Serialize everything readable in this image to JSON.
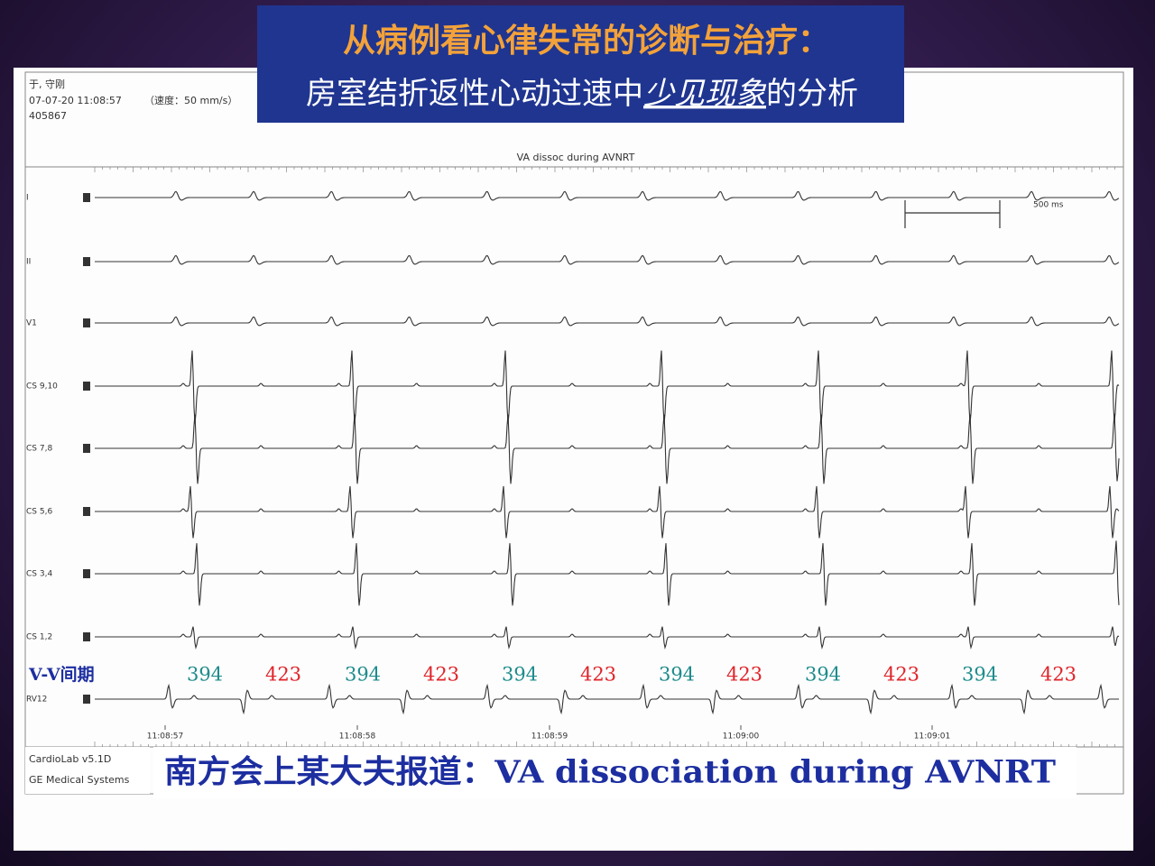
{
  "slide": {
    "title": "从病例看心律失常的诊断与治疗：",
    "subtitle": {
      "before": "房室结折返性心动过速中",
      "emphasis": "少见现象",
      "after": "的分析"
    }
  },
  "record": {
    "patient": "于, 守刚",
    "datetime": "07-07-20 11:08:57",
    "speed": "（速度：50 mm/s）",
    "id": "405867",
    "strip_title": "VA dissoc during AVNRT",
    "scale_label": "500 ms"
  },
  "leads": [
    "I",
    "II",
    "V1",
    "CS 9,10",
    "CS 7,8",
    "CS 5,6",
    "CS 3,4",
    "CS 1,2",
    "RV12"
  ],
  "intervals": {
    "label": "V-V间期",
    "values": [
      394,
      423,
      394,
      423,
      394,
      423,
      394,
      423,
      394,
      423,
      394,
      423
    ]
  },
  "time_labels": [
    "11:08:57",
    "11:08:58",
    "11:08:59",
    "11:09:00",
    "11:09:01"
  ],
  "footer": {
    "software": "CardioLab v5.1D",
    "vendor": "GE Medical Systems"
  },
  "caption": "南方会上某大夫报道：VA dissociation during AVNRT"
}
